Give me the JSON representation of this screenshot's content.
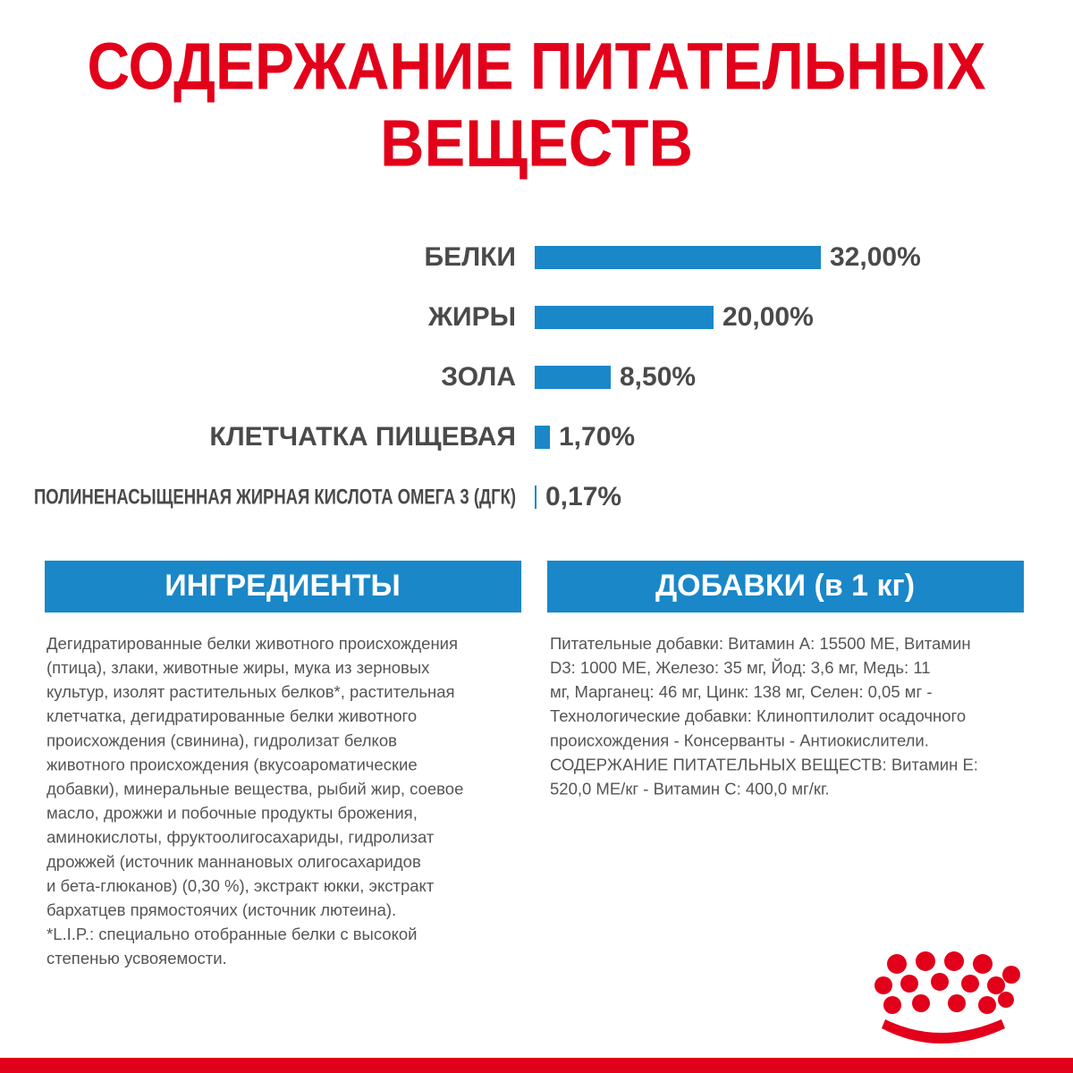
{
  "header": {
    "title_lines": [
      "СОДЕРЖАНИЕ ПИТАТЕЛЬНЫХ",
      "ВЕЩЕСТВ"
    ]
  },
  "chart_data": {
    "type": "bar",
    "categories": [
      "БЕЛКИ",
      "ЖИРЫ",
      "ЗОЛА",
      "КЛЕТЧАТКА ПИЩЕВАЯ",
      "ПОЛИНЕНАСЫЩЕННАЯ ЖИРНАЯ КИСЛОТА ОМЕГА 3 (ДГК)"
    ],
    "values": [
      32,
      20,
      8.5,
      1.7,
      0.17
    ],
    "value_labels": [
      "32,00%",
      "20,00%",
      "8,50%",
      "1,70%",
      "0,17%"
    ],
    "color": "#1a87c8"
  },
  "ingredients": {
    "title": "ИНГРЕДИЕНТЫ",
    "lines": [
      "Дегидратированные белки животного происхождения",
      "(птица), злаки, животные жиры, мука из зерновых",
      "культур, изолят растительных белков*, растительная",
      "клетчатка, дегидратированные белки животного",
      "происхождения (свинина), гидролизат белков",
      "животного происхождения (вкусоароматические",
      "добавки), минеральные вещества, рыбий жир, соевое",
      "масло, дрожжи и побочные продукты брожения,",
      "аминокислоты, фруктоолигосахариды, гидролизат",
      "дрожжей (источник маннановых олигосахаридов",
      "и бета-глюканов) (0,30 %), экстракт юкки, экстракт",
      "бархатцев прямостоячих (источник лютеина).",
      "*L.I.P.: специально отобранные белки с высокой",
      "степенью усвояемости."
    ]
  },
  "additives": {
    "title": "ДОБАВКИ (в 1 кг)",
    "lines": [
      "Питательные добавки: Витамин А: 15500 МЕ, Витамин",
      "D3: 1000 МЕ, Железо: 35 мг, Йод: 3,6 мг, Медь: 11",
      "мг, Марганец: 46 мг, Цинк: 138 мг, Селен: 0,05 мг -",
      "Технологические добавки: Клиноптилолит осадочного",
      "происхождения - Консерванты - Антиокислители.",
      "СОДЕРЖАНИЕ ПИТАТЕЛЬНЫХ ВЕЩЕСТВ: Витамин Е:",
      "520,0 МЕ/кг - Витамин С: 400,0 мг/кг."
    ]
  }
}
